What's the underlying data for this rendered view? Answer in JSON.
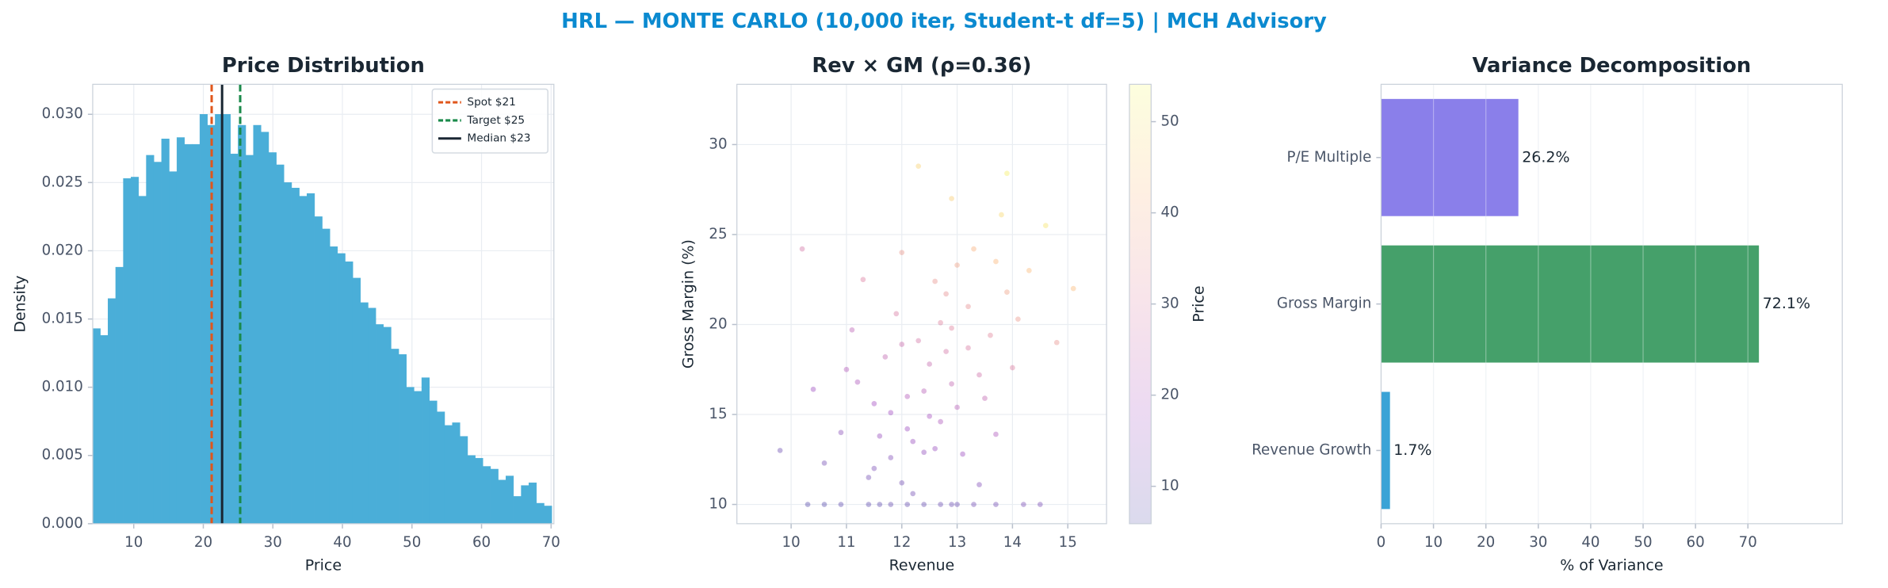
{
  "title": "HRL — MONTE CARLO (10,000 iter, Student-t df=5) | MCH Advisory",
  "chart_data": [
    {
      "type": "histogram",
      "title": "Price Distribution",
      "xlabel": "Price",
      "ylabel": "Density",
      "color": "#4aaed8",
      "grid": true,
      "legend": "upper right",
      "bins": [
        4.1,
        5.2,
        6.3,
        7.4,
        8.5,
        9.6,
        10.7,
        11.8,
        12.9,
        14,
        15.1,
        16.2,
        17.3,
        18.4,
        19.5,
        20.6,
        21.7,
        22.8,
        23.9,
        25,
        26.1,
        27.2,
        28.3,
        29.4,
        30.5,
        31.6,
        32.7,
        33.8,
        34.9,
        36,
        37.1,
        38.2,
        39.3,
        40.4,
        41.5,
        42.6,
        43.7,
        44.8,
        45.9,
        47,
        48.1,
        49.2,
        50.3,
        51.4,
        52.5,
        53.6,
        54.7,
        55.8,
        56.9,
        58,
        59.1,
        60.2,
        61.3,
        62.4,
        63.5,
        64.6,
        65.7,
        66.8,
        67.9,
        69,
        70.1
      ],
      "values": [
        0.0143,
        0.0138,
        0.0165,
        0.0188,
        0.0253,
        0.0254,
        0.024,
        0.027,
        0.0265,
        0.0282,
        0.0258,
        0.0283,
        0.0278,
        0.0278,
        0.03,
        0.0292,
        0.03,
        0.03,
        0.0271,
        0.0292,
        0.027,
        0.0292,
        0.0287,
        0.0272,
        0.0263,
        0.025,
        0.0246,
        0.024,
        0.0242,
        0.0225,
        0.0216,
        0.0203,
        0.0198,
        0.0192,
        0.018,
        0.0162,
        0.0158,
        0.0146,
        0.0144,
        0.0128,
        0.0124,
        0.01,
        0.0097,
        0.0107,
        0.009,
        0.0082,
        0.0072,
        0.0074,
        0.0064,
        0.005,
        0.0048,
        0.0042,
        0.004,
        0.0032,
        0.0035,
        0.002,
        0.0028,
        0.003,
        0.0015,
        0.0013
      ],
      "vlines": [
        {
          "label": "Spot $21",
          "value": 21.2,
          "color": "#e0561b",
          "style": "dashed"
        },
        {
          "label": "Target $25",
          "value": 25.3,
          "color": "#1a8a4a",
          "style": "dashed"
        },
        {
          "label": "Median $23",
          "value": 22.7,
          "color": "#1a2733",
          "style": "solid"
        }
      ],
      "xlim": [
        4.1,
        70.4
      ],
      "xticks": [
        10,
        20,
        30,
        40,
        50,
        60,
        70
      ],
      "ylim": [
        0,
        0.0322
      ],
      "yticks": [
        {
          "value": 0,
          "label": "0.000"
        },
        {
          "value": 0.005,
          "label": "0.005"
        },
        {
          "value": 0.01,
          "label": "0.010"
        },
        {
          "value": 0.015,
          "label": "0.015"
        },
        {
          "value": 0.02,
          "label": "0.020"
        },
        {
          "value": 0.025,
          "label": "0.025"
        },
        {
          "value": 0.03,
          "label": "0.030"
        }
      ]
    },
    {
      "type": "scatter",
      "title": "Rev × GM (ρ=0.36)",
      "xlabel": "Revenue",
      "ylabel": "Gross Margin (%)",
      "colormap": "plasma",
      "alpha": 0.3,
      "grid": true,
      "x": [
        12.1,
        12.8,
        11.5,
        13.2,
        12.4,
        13.7,
        11.8,
        12.9,
        12.2,
        13.4,
        11.2,
        12.6,
        14.1,
        12.0,
        13.0,
        12.3,
        11.6,
        13.8,
        12.7,
        10.9,
        13.3,
        12.5,
        11.9,
        14.3,
        12.2,
        13.6,
        11.4,
        12.8,
        10.6,
        13.1,
        14.6,
        12.0,
        11.7,
        13.5,
        12.4,
        13.9,
        11.0,
        12.9,
        12.1,
        13.2,
        15.1,
        10.4,
        12.6,
        14.0,
        11.3,
        12.3,
        13.7,
        9.8,
        12.7,
        11.5,
        13.0,
        14.8,
        12.0,
        10.2,
        13.4,
        12.5,
        11.1,
        13.9,
        12.9,
        11.8,
        10.3,
        10.9,
        11.4,
        11.8,
        12.1,
        12.4,
        12.7,
        13.0,
        13.3,
        13.7,
        14.2,
        11.6,
        12.9,
        10.6,
        14.5
      ],
      "values": [
        14.2,
        18.5,
        12.0,
        21.0,
        16.3,
        23.5,
        15.1,
        19.8,
        13.5,
        17.2,
        16.8,
        22.4,
        20.3,
        11.2,
        15.4,
        19.1,
        13.8,
        26.1,
        14.6,
        14.0,
        24.2,
        17.8,
        20.6,
        23.0,
        10.6,
        19.4,
        11.5,
        21.7,
        12.3,
        12.8,
        25.5,
        24.0,
        18.2,
        15.9,
        12.9,
        21.8,
        17.5,
        27.0,
        16.0,
        18.7,
        22.0,
        16.4,
        13.1,
        17.6,
        22.5,
        28.8,
        13.9,
        13.0,
        20.1,
        15.6,
        23.3,
        19.0,
        18.9,
        24.2,
        11.1,
        14.9,
        19.7,
        28.4,
        16.7,
        12.6,
        10,
        10,
        10,
        10,
        10,
        10,
        10,
        10,
        10,
        10,
        10,
        10,
        10,
        10,
        10
      ],
      "c": [
        17,
        28,
        12,
        34,
        22,
        42,
        18,
        31,
        16,
        27,
        20,
        35,
        36,
        11,
        22,
        28,
        16,
        48,
        20,
        14,
        41,
        25,
        29,
        43,
        11,
        32,
        11,
        34,
        11,
        17,
        50,
        36,
        24,
        24,
        15,
        38,
        21,
        46,
        21,
        29,
        43,
        17,
        16,
        30,
        30,
        47,
        20,
        10,
        31,
        18,
        38,
        35,
        26,
        28,
        13,
        19,
        23,
        52,
        24,
        13,
        7,
        8,
        8,
        9,
        9,
        9,
        10,
        10,
        11,
        11,
        12,
        8,
        10,
        7,
        12
      ],
      "colorbar": {
        "label": "Price",
        "lim": [
          5.9,
          54.1
        ],
        "ticks": [
          10,
          20,
          30,
          40,
          50
        ]
      },
      "xlim": [
        9.02,
        15.7
      ],
      "xticks": [
        10,
        11,
        12,
        13,
        14,
        15
      ],
      "ylim": [
        8.93,
        33.35
      ],
      "yticks": [
        10,
        15,
        20,
        25,
        30
      ]
    },
    {
      "type": "barh",
      "title": "Variance Decomposition",
      "xlabel": "% of Variance",
      "grid": true,
      "categories": [
        "Revenue Growth",
        "Gross Margin",
        "P/E Multiple"
      ],
      "values": [
        1.7,
        72.1,
        26.2
      ],
      "value_labels": [
        "1.7%",
        "72.1%",
        "26.2%"
      ],
      "colors": [
        "#3aa3d6",
        "#45a06a",
        "#8a7fea"
      ],
      "xlim": [
        0,
        88
      ],
      "xticks": [
        0,
        10,
        20,
        30,
        40,
        50,
        60,
        70
      ]
    }
  ]
}
